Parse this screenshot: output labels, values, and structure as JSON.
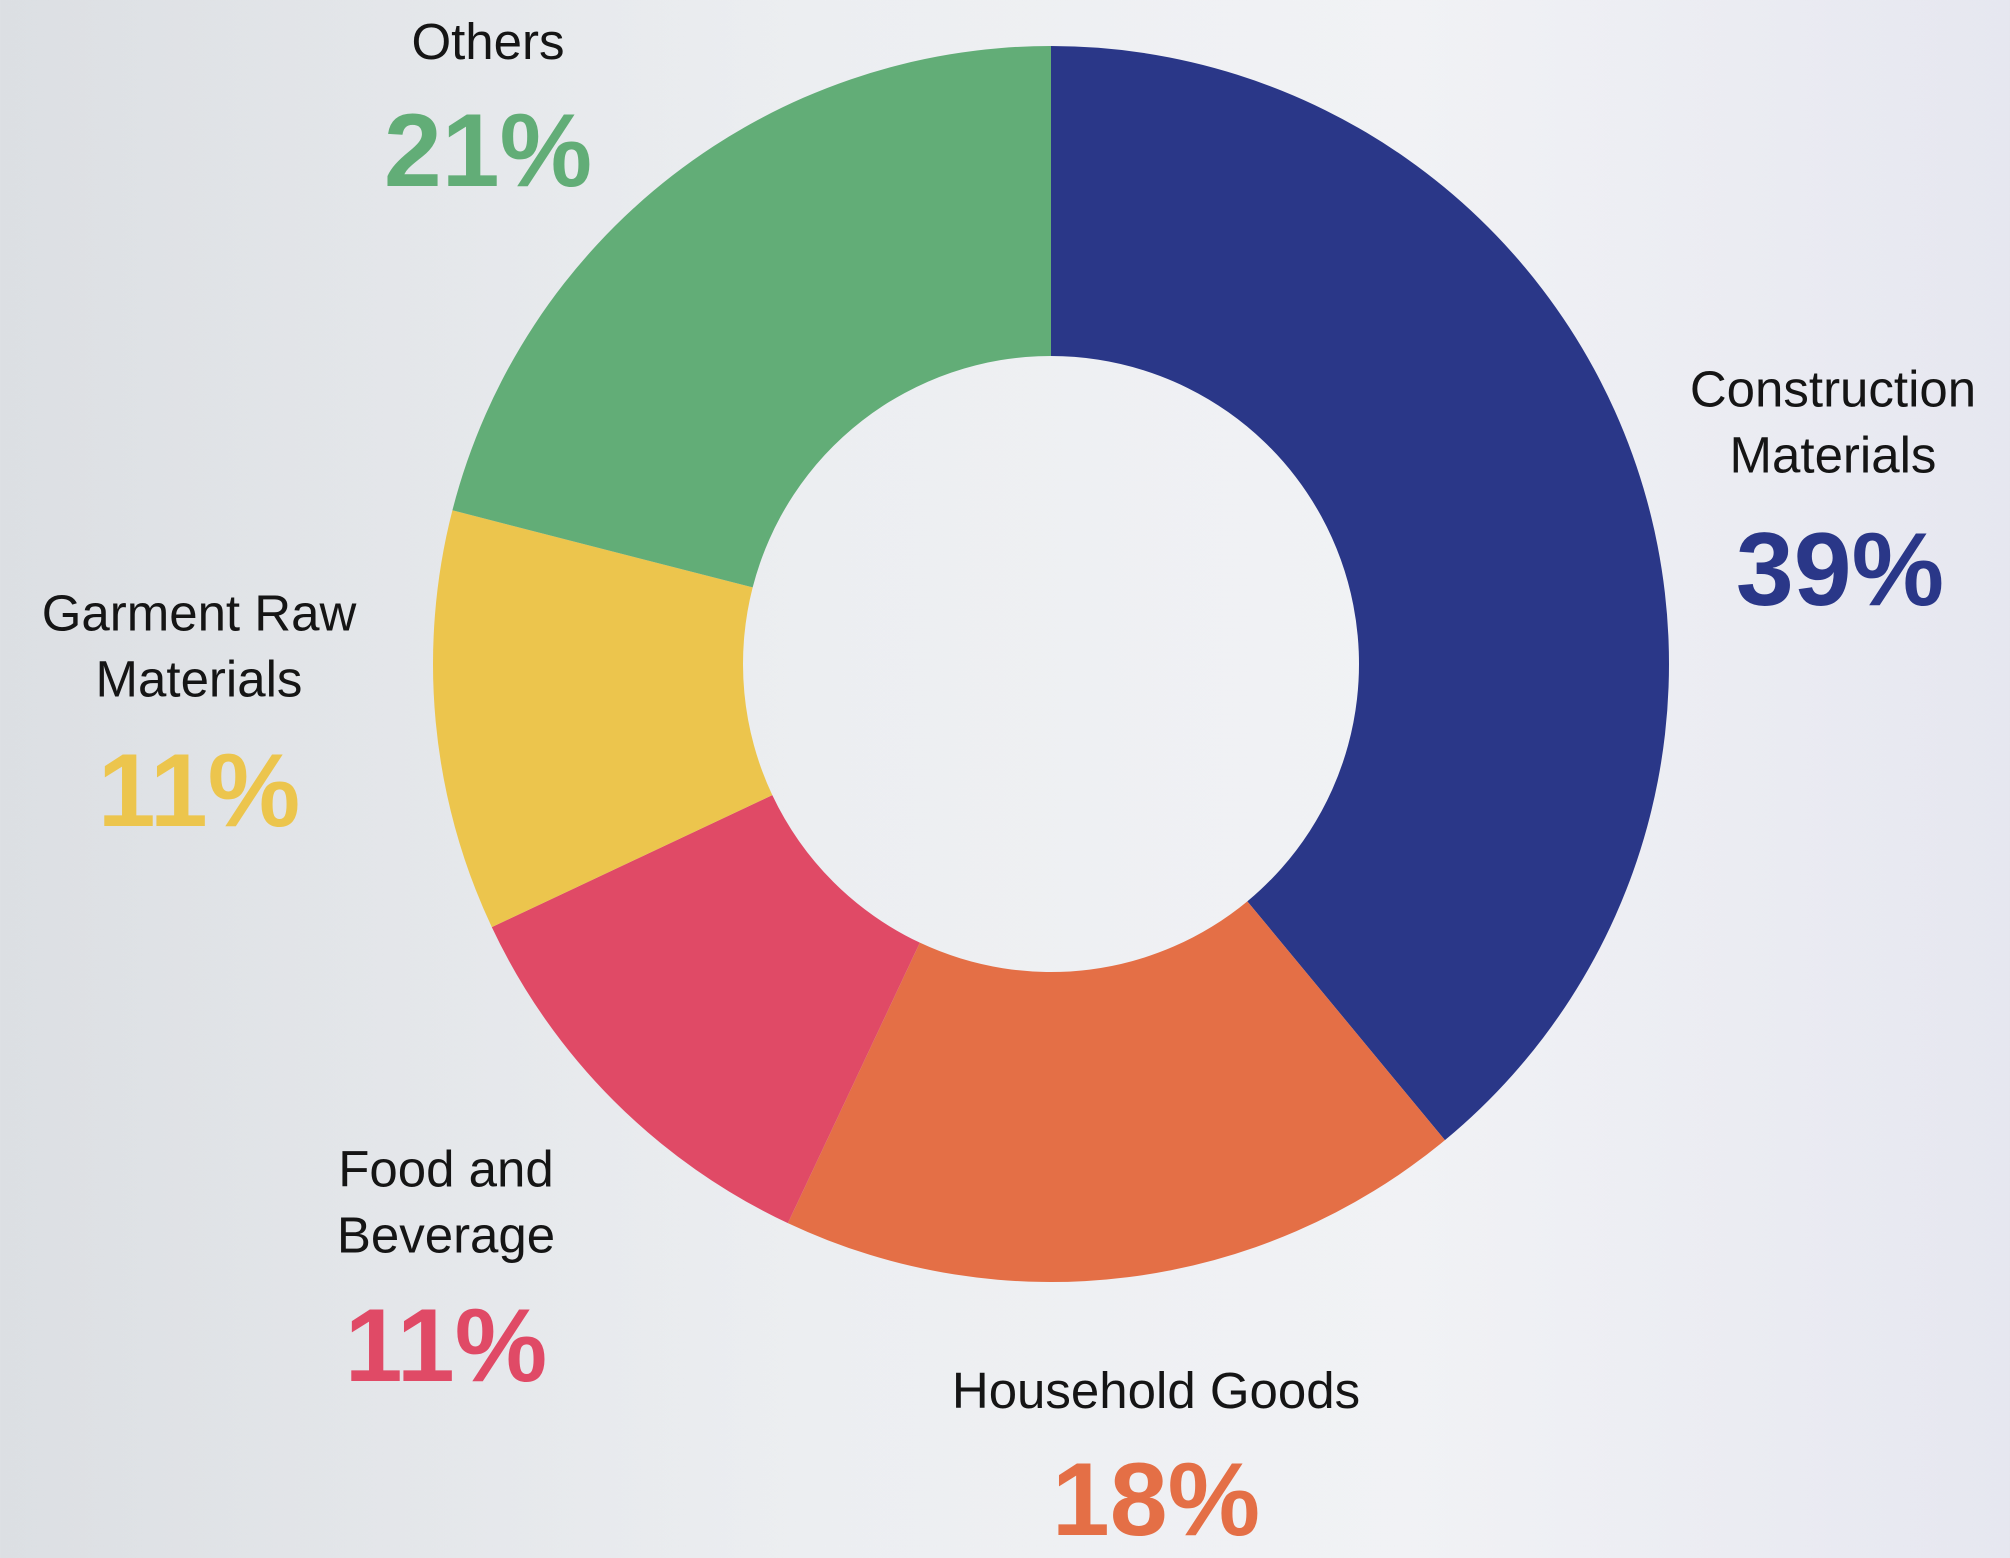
{
  "chart_data": {
    "type": "donut",
    "categories": [
      "Construction Materials",
      "Household Goods",
      "Food and Beverage",
      "Garment Raw Materials",
      "Others"
    ],
    "values": [
      39,
      18,
      11,
      11,
      21
    ],
    "value_labels": [
      "39%",
      "18%",
      "11%",
      "11%",
      "21%"
    ],
    "colors": [
      "#2a3788",
      "#e46f46",
      "#e04a66",
      "#ecc54d",
      "#62ad77"
    ]
  }
}
